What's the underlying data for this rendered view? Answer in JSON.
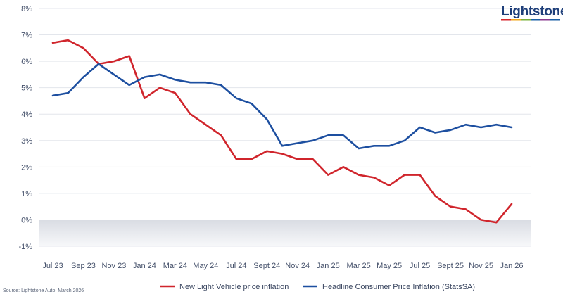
{
  "brand": {
    "name": "Lightstone",
    "underline_colors": [
      "#d7262c",
      "#f2a71b",
      "#7ab03b",
      "#1b5fa6",
      "#8a3b8f",
      "#1b5fa6"
    ]
  },
  "source_note": "Source: Lightstone Auto, March 2026",
  "chart_data": {
    "type": "line",
    "x": [
      "Jul 23",
      "Aug 23",
      "Sep 23",
      "Oct 23",
      "Nov 23",
      "Dec 23",
      "Jan 24",
      "Feb 24",
      "Mar 24",
      "Apr 24",
      "May 24",
      "Jun 24",
      "Jul 24",
      "Aug 24",
      "Sept 24",
      "Oct 24",
      "Nov 24",
      "Dec 24",
      "Jan 25",
      "Feb 25",
      "Mar 25",
      "Apr 25",
      "May 25",
      "Jun 25",
      "Jul 25",
      "Aug 25",
      "Sept 25",
      "Oct 25",
      "Nov 25",
      "Dec 25",
      "Jan 26"
    ],
    "x_tick_labels": [
      "Jul 23",
      "Sep 23",
      "Nov 23",
      "Jan 24",
      "Mar 24",
      "May 24",
      "Jul 24",
      "Sept 24",
      "Nov 24",
      "Jan 25",
      "Mar 25",
      "May 25",
      "Jul 25",
      "Sept 25",
      "Nov 25",
      "Jan 26"
    ],
    "y_tick_labels": [
      "8%",
      "7%",
      "6%",
      "5%",
      "4%",
      "3%",
      "2%",
      "1%",
      "0%",
      "-1%"
    ],
    "ylim": [
      -1,
      8
    ],
    "grid": "horizontal",
    "negative_region_shaded": true,
    "legend_position": "bottom",
    "series": [
      {
        "name": "New Light Vehicle price inflation",
        "color": "#d0252c",
        "values": [
          6.7,
          6.8,
          6.5,
          5.9,
          6.0,
          6.2,
          4.6,
          5.0,
          4.8,
          4.0,
          3.6,
          3.2,
          2.3,
          2.3,
          2.6,
          2.5,
          2.3,
          2.3,
          1.7,
          2.0,
          1.7,
          1.6,
          1.3,
          1.7,
          1.7,
          0.9,
          0.5,
          0.4,
          0.0,
          -0.1,
          0.6
        ]
      },
      {
        "name": "Headline Consumer Price Inflation (StatsSA)",
        "color": "#1d4fa0",
        "values": [
          4.7,
          4.8,
          5.4,
          5.9,
          5.5,
          5.1,
          5.4,
          5.5,
          5.3,
          5.2,
          5.2,
          5.1,
          4.6,
          4.4,
          3.8,
          2.8,
          2.9,
          3.0,
          3.2,
          3.2,
          2.7,
          2.8,
          2.8,
          3.0,
          3.5,
          3.3,
          3.4,
          3.6,
          3.5,
          3.6,
          3.5
        ]
      }
    ]
  }
}
